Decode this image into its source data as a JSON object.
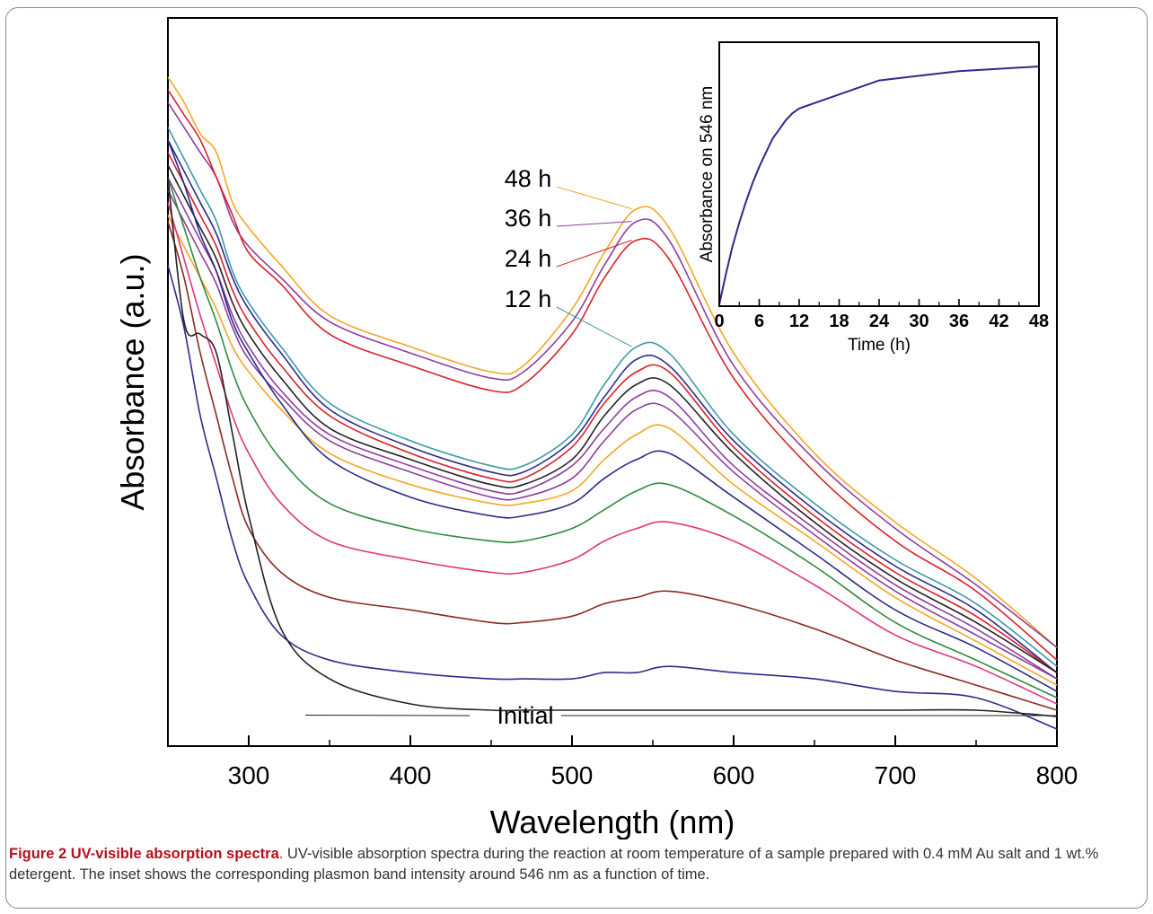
{
  "chart_data": [
    {
      "type": "line",
      "title": "",
      "xlabel": "Wavelength (nm)",
      "ylabel": "Absorbance (a.u.)",
      "xlim": [
        250,
        800
      ],
      "xticks": [
        "300",
        "400",
        "500",
        "600",
        "700",
        "800"
      ],
      "xticks_values": [
        300,
        400,
        500,
        600,
        700,
        800
      ],
      "ylim": [
        0,
        1
      ],
      "yticks": [],
      "grid": false,
      "x": [
        250,
        260,
        270,
        280,
        290,
        300,
        320,
        350,
        400,
        450,
        470,
        500,
        520,
        540,
        560,
        600,
        650,
        700,
        750,
        800
      ],
      "series": [
        {
          "name": "48 h",
          "color": "#f5a623",
          "values": [
            1.02,
            0.98,
            0.93,
            0.9,
            0.82,
            0.78,
            0.72,
            0.64,
            0.59,
            0.55,
            0.56,
            0.65,
            0.74,
            0.81,
            0.78,
            0.58,
            0.42,
            0.31,
            0.22,
            0.11
          ]
        },
        {
          "name": "36 h",
          "color": "#8e3d9e",
          "values": [
            0.98,
            0.94,
            0.9,
            0.86,
            0.79,
            0.75,
            0.7,
            0.63,
            0.58,
            0.54,
            0.55,
            0.63,
            0.72,
            0.79,
            0.76,
            0.56,
            0.41,
            0.3,
            0.21,
            0.11
          ]
        },
        {
          "name": "24 h",
          "color": "#d9202a",
          "values": [
            1.0,
            0.96,
            0.92,
            0.86,
            0.8,
            0.74,
            0.69,
            0.61,
            0.56,
            0.52,
            0.53,
            0.61,
            0.7,
            0.76,
            0.73,
            0.54,
            0.39,
            0.28,
            0.2,
            0.09
          ]
        },
        {
          "name": "12 h",
          "color": "#3b9aa8",
          "values": [
            0.94,
            0.89,
            0.84,
            0.79,
            0.71,
            0.66,
            0.59,
            0.5,
            0.44,
            0.4,
            0.4,
            0.45,
            0.53,
            0.59,
            0.58,
            0.45,
            0.34,
            0.25,
            0.18,
            0.08
          ]
        },
        {
          "name": "",
          "color": "#2b2b8a",
          "values": [
            0.92,
            0.87,
            0.82,
            0.77,
            0.7,
            0.65,
            0.58,
            0.49,
            0.43,
            0.39,
            0.39,
            0.44,
            0.51,
            0.57,
            0.56,
            0.44,
            0.33,
            0.24,
            0.17,
            0.07
          ]
        },
        {
          "name": "",
          "color": "#d9202a",
          "values": [
            0.9,
            0.85,
            0.8,
            0.75,
            0.68,
            0.63,
            0.56,
            0.48,
            0.42,
            0.38,
            0.38,
            0.43,
            0.5,
            0.55,
            0.55,
            0.43,
            0.32,
            0.23,
            0.16,
            0.07
          ]
        },
        {
          "name": "",
          "color": "#222222",
          "values": [
            0.88,
            0.83,
            0.78,
            0.73,
            0.66,
            0.61,
            0.54,
            0.46,
            0.41,
            0.37,
            0.37,
            0.41,
            0.48,
            0.53,
            0.53,
            0.42,
            0.31,
            0.22,
            0.15,
            0.07
          ]
        },
        {
          "name": "",
          "color": "#8e3d9e",
          "values": [
            0.86,
            0.81,
            0.76,
            0.71,
            0.64,
            0.59,
            0.52,
            0.45,
            0.4,
            0.36,
            0.36,
            0.4,
            0.46,
            0.51,
            0.51,
            0.4,
            0.3,
            0.21,
            0.14,
            0.06
          ]
        },
        {
          "name": "",
          "color": "#8e3d9e",
          "values": [
            0.84,
            0.79,
            0.74,
            0.69,
            0.62,
            0.57,
            0.51,
            0.44,
            0.39,
            0.35,
            0.35,
            0.38,
            0.44,
            0.49,
            0.49,
            0.39,
            0.29,
            0.2,
            0.13,
            0.06
          ]
        },
        {
          "name": "",
          "color": "#f5a623",
          "values": [
            0.8,
            0.75,
            0.7,
            0.65,
            0.59,
            0.55,
            0.49,
            0.42,
            0.37,
            0.34,
            0.34,
            0.36,
            0.41,
            0.45,
            0.46,
            0.37,
            0.28,
            0.19,
            0.12,
            0.05
          ]
        },
        {
          "name": "",
          "color": "#2b2b8a",
          "values": [
            0.92,
            0.85,
            0.77,
            0.71,
            0.63,
            0.58,
            0.5,
            0.41,
            0.35,
            0.32,
            0.32,
            0.34,
            0.38,
            0.41,
            0.42,
            0.35,
            0.26,
            0.17,
            0.11,
            0.04
          ]
        },
        {
          "name": "",
          "color": "#2e8b3e",
          "values": [
            0.86,
            0.78,
            0.7,
            0.63,
            0.55,
            0.49,
            0.41,
            0.34,
            0.3,
            0.28,
            0.28,
            0.3,
            0.33,
            0.36,
            0.37,
            0.32,
            0.24,
            0.15,
            0.09,
            0.03
          ]
        },
        {
          "name": "",
          "color": "#e0347a",
          "values": [
            0.82,
            0.73,
            0.64,
            0.56,
            0.48,
            0.42,
            0.34,
            0.28,
            0.25,
            0.23,
            0.23,
            0.25,
            0.28,
            0.3,
            0.31,
            0.28,
            0.21,
            0.13,
            0.08,
            0.02
          ]
        },
        {
          "name": "",
          "color": "#8b2a20",
          "values": [
            0.79,
            0.7,
            0.58,
            0.48,
            0.38,
            0.3,
            0.23,
            0.19,
            0.17,
            0.15,
            0.15,
            0.16,
            0.18,
            0.19,
            0.2,
            0.18,
            0.14,
            0.09,
            0.05,
            0.01
          ]
        },
        {
          "name": "",
          "color": "#2b2b8a",
          "values": [
            0.72,
            0.62,
            0.48,
            0.38,
            0.28,
            0.21,
            0.13,
            0.09,
            0.07,
            0.06,
            0.06,
            0.06,
            0.07,
            0.07,
            0.08,
            0.07,
            0.06,
            0.04,
            0.03,
            -0.02
          ]
        },
        {
          "name": "Initial",
          "color": "#222222",
          "values": [
            0.86,
            0.63,
            0.61,
            0.58,
            0.45,
            0.32,
            0.14,
            0.06,
            0.02,
            0.01,
            0.01,
            0.01,
            0.01,
            0.01,
            0.01,
            0.01,
            0.01,
            0.01,
            0.01,
            0.0
          ]
        }
      ],
      "annotations": [
        {
          "text": "48 h",
          "series": "48 h"
        },
        {
          "text": "36 h",
          "series": "36 h"
        },
        {
          "text": "24 h",
          "series": "24 h"
        },
        {
          "text": "12 h",
          "series": "12 h"
        },
        {
          "text": "Initial",
          "series": "Initial"
        }
      ]
    },
    {
      "type": "line",
      "title": "",
      "xlabel": "Time (h)",
      "ylabel": "Absorbance on 546 nm",
      "xlim": [
        0,
        48
      ],
      "xticks": [
        "0",
        "6",
        "12",
        "18",
        "24",
        "30",
        "36",
        "42",
        "48"
      ],
      "xticks_values": [
        0,
        6,
        12,
        18,
        24,
        30,
        36,
        42,
        48
      ],
      "yticks": [],
      "grid": false,
      "color": "#2b2b8a",
      "x": [
        0,
        1,
        2,
        3,
        4,
        5,
        6,
        7,
        8,
        9,
        10,
        11,
        12,
        18,
        24,
        30,
        36,
        42,
        48
      ],
      "y": [
        0.0,
        0.13,
        0.25,
        0.35,
        0.44,
        0.52,
        0.59,
        0.65,
        0.71,
        0.75,
        0.79,
        0.82,
        0.84,
        0.9,
        0.96,
        0.98,
        1.0,
        1.01,
        1.02
      ]
    }
  ],
  "caption": {
    "title_bold": "Figure 2 UV-visible absorption spectra",
    "title_period": ".",
    "text": " UV-visible absorption spectra during the reaction at room temperature of a sample prepared with 0.4 mM Au salt and 1 wt.% detergent. The inset shows the corresponding plasmon band intensity around 546 nm as a function of time."
  }
}
